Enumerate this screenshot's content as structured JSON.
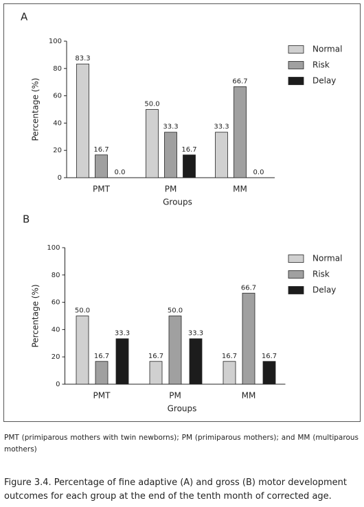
{
  "chart_data": [
    {
      "type": "bar",
      "title": "A",
      "x_label": "Groups",
      "y_label": "Percentage (%)",
      "categories": [
        "PMT",
        "PM",
        "MM"
      ],
      "series": [
        {
          "name": "Normal",
          "color": "#d0d0d0",
          "values": [
            83.3,
            50,
            33.3
          ],
          "value_labels": [
            "83.3",
            "50.0",
            "33.3"
          ]
        },
        {
          "name": "Risk",
          "color": "#a0a0a0",
          "values": [
            16.7,
            33.3,
            66.7
          ],
          "value_labels": [
            "16.7",
            "33.3",
            "66.7"
          ]
        },
        {
          "name": "Delay",
          "color": "#1c1c1c",
          "values": [
            0,
            16.7,
            0
          ],
          "value_labels": [
            "0.0",
            "16.7",
            "0.0"
          ]
        }
      ],
      "ylim": [
        0,
        100
      ],
      "yticks": [
        0,
        20,
        40,
        60,
        80,
        100
      ],
      "legend": "right"
    },
    {
      "type": "bar",
      "title": "B",
      "x_label": "Groups",
      "y_label": "Percentage (%)",
      "categories": [
        "PMT",
        "PM",
        "MM"
      ],
      "series": [
        {
          "name": "Normal",
          "color": "#d0d0d0",
          "values": [
            50,
            16.7,
            16.7
          ],
          "value_labels": [
            "50.0",
            "16.7",
            "16.7"
          ]
        },
        {
          "name": "Risk",
          "color": "#a0a0a0",
          "values": [
            16.7,
            50,
            66.7
          ],
          "value_labels": [
            "16.7",
            "50.0",
            "66.7"
          ]
        },
        {
          "name": "Delay",
          "color": "#1c1c1c",
          "values": [
            33.3,
            33.3,
            16.7
          ],
          "value_labels": [
            "33.3",
            "33.3",
            "16.7"
          ]
        }
      ],
      "ylim": [
        0,
        100
      ],
      "yticks": [
        0,
        20,
        40,
        60,
        80,
        100
      ],
      "legend": "right"
    }
  ],
  "footnote": "PMT (primiparous mothers with twin newborns); PM (primiparous mothers); and MM (multiparous mothers)",
  "caption": "Figure 3.4. Percentage of fine adaptive (A) and gross (B) motor development outcomes for each group at the end of the tenth month of corrected age."
}
